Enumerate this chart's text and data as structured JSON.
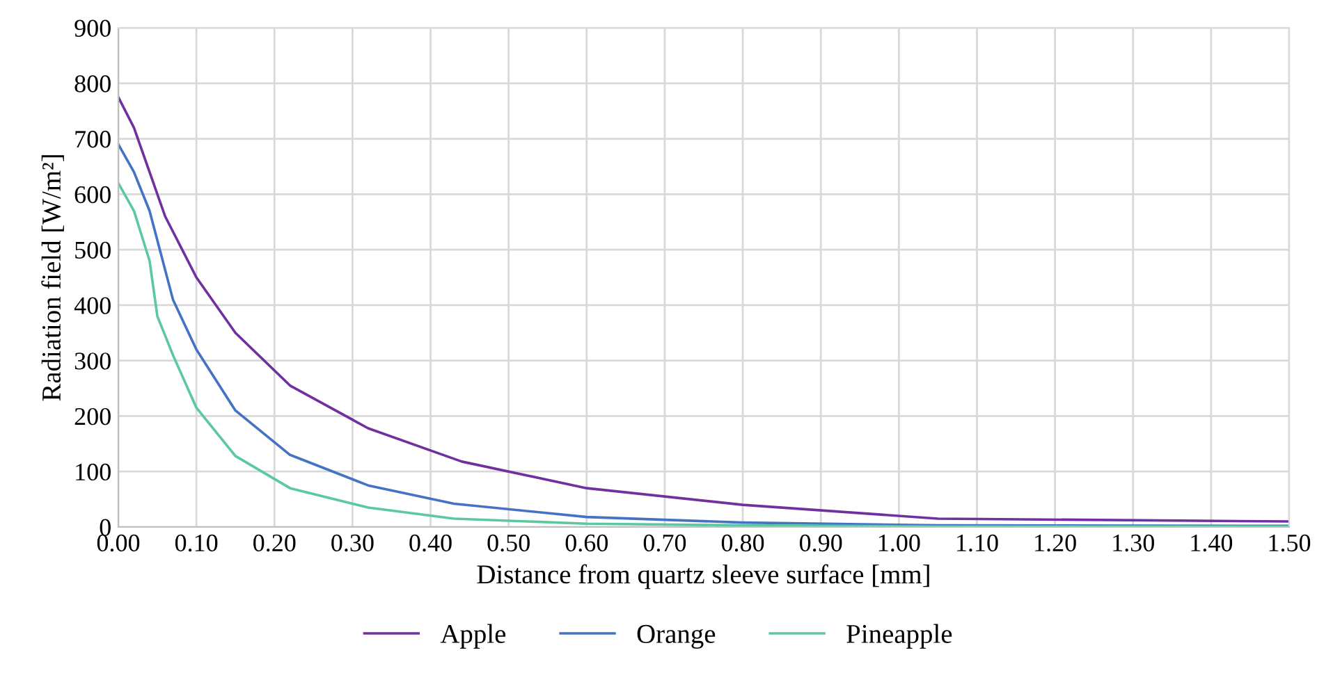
{
  "chart_data": {
    "type": "line",
    "xlabel": "Distance from quartz sleeve surface [mm]",
    "ylabel": "Radiation field [W/m²]",
    "xlim": [
      0,
      1.5
    ],
    "xticks": [
      {
        "value": 0,
        "label": "0.00"
      },
      {
        "value": 0.1,
        "label": "0.10"
      },
      {
        "value": 0.2,
        "label": "0.20"
      },
      {
        "value": 0.3,
        "label": "0.30"
      },
      {
        "value": 0.4,
        "label": "0.40"
      },
      {
        "value": 0.5,
        "label": "0.50"
      },
      {
        "value": 0.6,
        "label": "0.60"
      },
      {
        "value": 0.7,
        "label": "0.70"
      },
      {
        "value": 0.8,
        "label": "0.80"
      },
      {
        "value": 0.9,
        "label": "0.90"
      },
      {
        "value": 1.0,
        "label": "1.00"
      },
      {
        "value": 1.1,
        "label": "1.10"
      },
      {
        "value": 1.2,
        "label": "1.20"
      },
      {
        "value": 1.3,
        "label": "1.30"
      },
      {
        "value": 1.4,
        "label": "1.40"
      },
      {
        "value": 1.5,
        "label": "1.50"
      }
    ],
    "ylim": [
      0,
      900
    ],
    "yticks": [
      0,
      100,
      200,
      300,
      400,
      500,
      600,
      700,
      800,
      900
    ],
    "grid": true,
    "legend": "bottom",
    "marker": "none",
    "line_style": "solid",
    "series": [
      {
        "name": "Apple",
        "color": "#7030a0",
        "x": [
          0,
          0.02,
          0.04,
          0.06,
          0.08,
          0.1,
          0.15,
          0.22,
          0.32,
          0.44,
          0.6,
          0.8,
          1.05,
          1.5
        ],
        "values": [
          775,
          720,
          640,
          560,
          505,
          450,
          350,
          255,
          178,
          118,
          70,
          40,
          15,
          10
        ]
      },
      {
        "name": "Orange",
        "color": "#4472c4",
        "x": [
          0,
          0.02,
          0.04,
          0.07,
          0.1,
          0.15,
          0.22,
          0.32,
          0.43,
          0.6,
          0.8,
          1.05,
          1.5
        ],
        "values": [
          690,
          640,
          570,
          410,
          320,
          210,
          130,
          75,
          42,
          18,
          8,
          3,
          2
        ]
      },
      {
        "name": "Pineapple",
        "color": "#5bc8a0",
        "x": [
          0,
          0.02,
          0.04,
          0.05,
          0.07,
          0.1,
          0.15,
          0.22,
          0.32,
          0.43,
          0.6,
          0.8,
          1.05,
          1.5
        ],
        "values": [
          620,
          570,
          480,
          380,
          310,
          215,
          128,
          70,
          35,
          15,
          6,
          3,
          1,
          1
        ]
      }
    ]
  }
}
